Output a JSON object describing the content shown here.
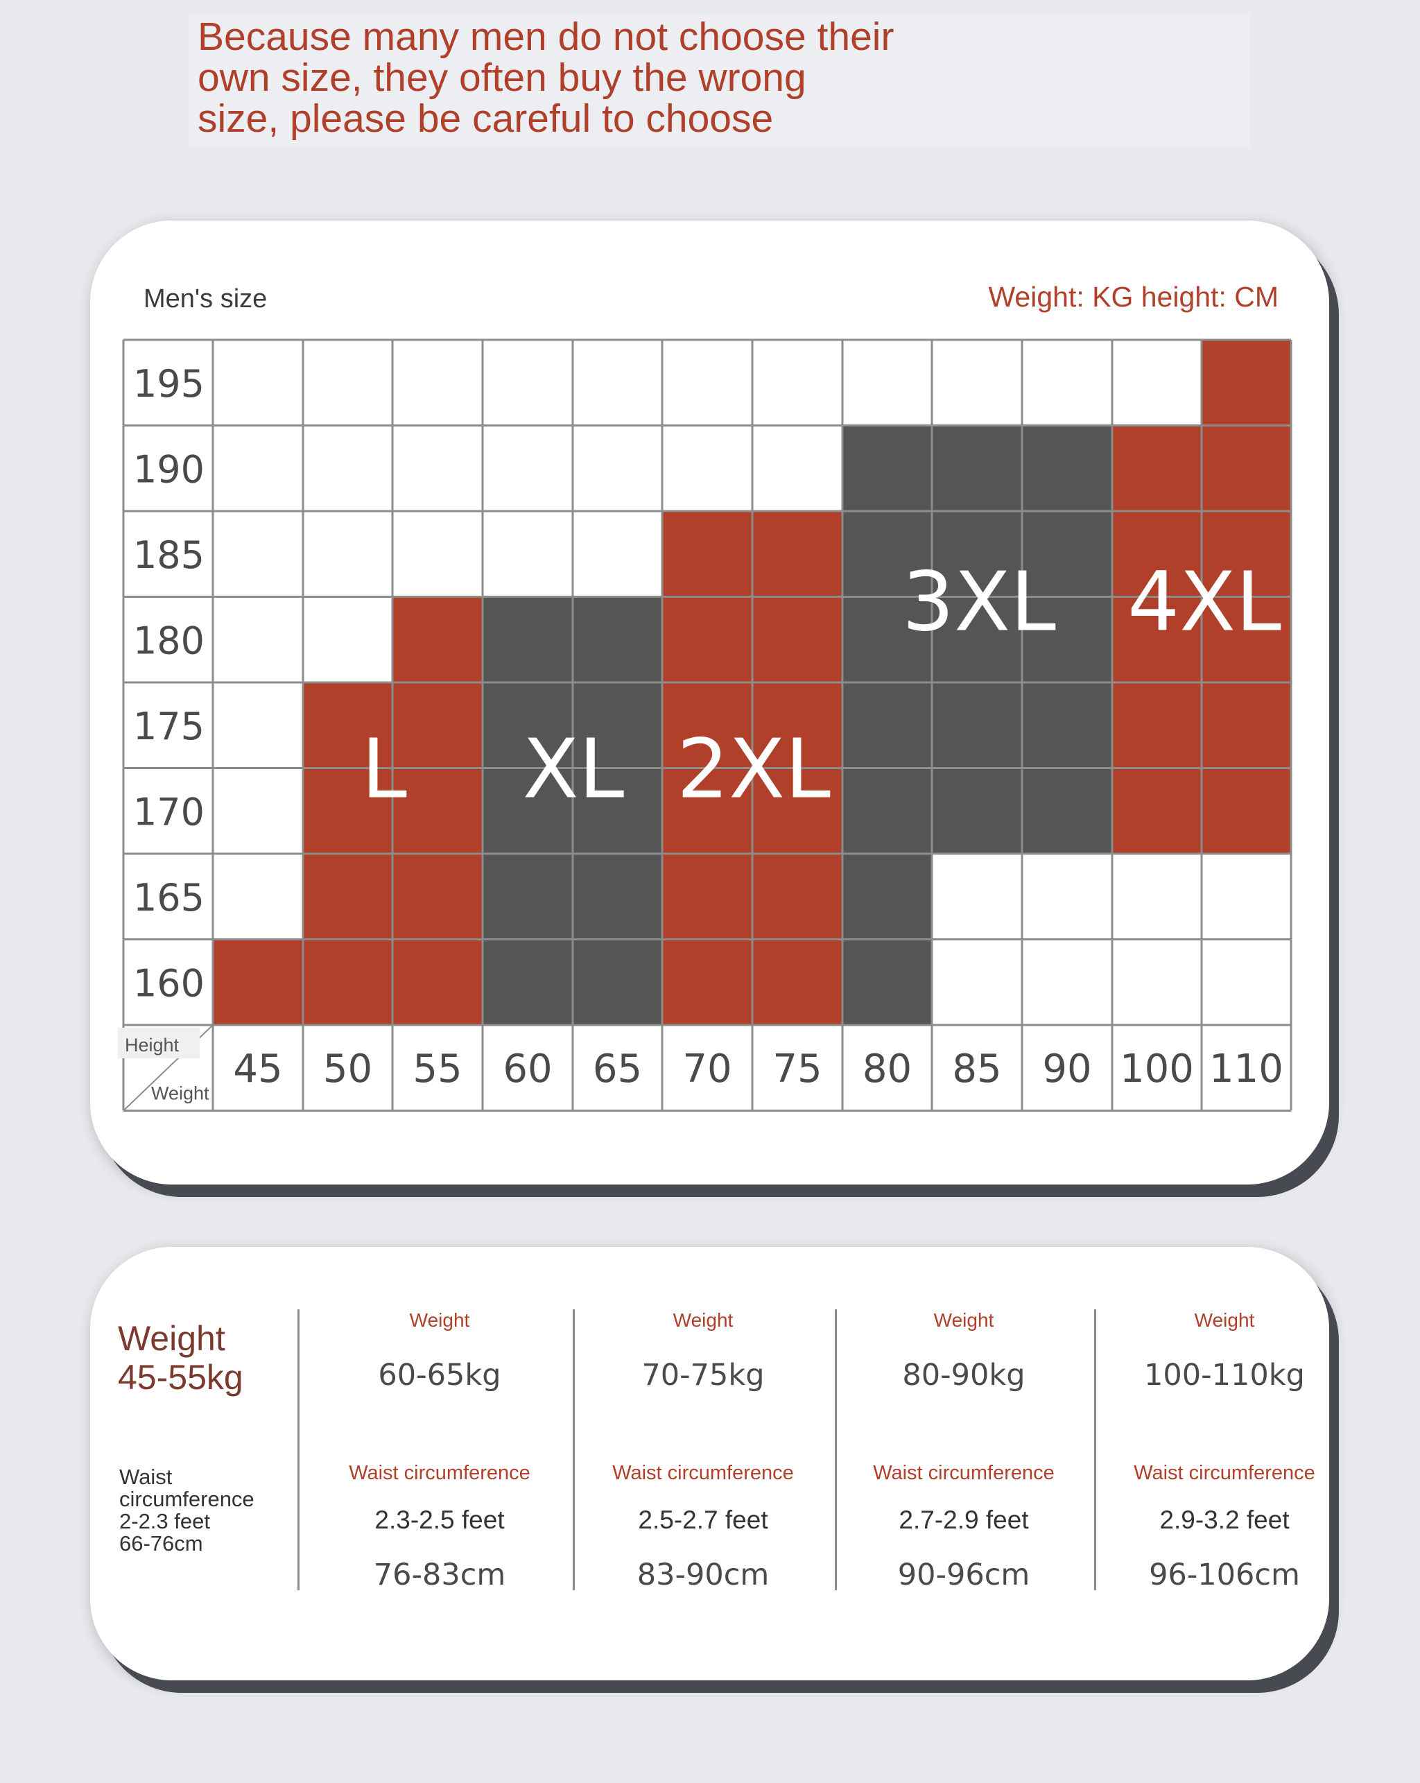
{
  "banner": {
    "line1": "Because many men do not choose their",
    "line2": "own size, they often buy the wrong",
    "line3": "size, please be careful to choose"
  },
  "chart_header": {
    "title": "Men's size",
    "units": "Weight: KG height: CM"
  },
  "chart_data": {
    "type": "heatmap",
    "title": "Men's size",
    "xlabel": "Weight",
    "ylabel": "Height",
    "x": [
      "45",
      "50",
      "55",
      "60",
      "65",
      "70",
      "75",
      "80",
      "85",
      "90",
      "100",
      "110"
    ],
    "y": [
      "195",
      "190",
      "185",
      "180",
      "175",
      "170",
      "165",
      "160"
    ],
    "colors": {
      "red": "#b0402a",
      "gray": "#555555",
      "white": "#ffffff",
      "grid": "#8c8c8c"
    },
    "sizes": [
      {
        "name": "L",
        "color": "red",
        "cells": [
          [
            0,
            0
          ],
          [
            1,
            0
          ],
          [
            2,
            0
          ],
          [
            1,
            1
          ],
          [
            2,
            1
          ],
          [
            1,
            2
          ],
          [
            2,
            2
          ],
          [
            1,
            3
          ],
          [
            2,
            3
          ],
          [
            2,
            4
          ]
        ]
      },
      {
        "name": "XL",
        "color": "gray",
        "cells": [
          [
            3,
            0
          ],
          [
            4,
            0
          ],
          [
            3,
            1
          ],
          [
            4,
            1
          ],
          [
            3,
            2
          ],
          [
            4,
            2
          ],
          [
            3,
            3
          ],
          [
            4,
            3
          ],
          [
            3,
            4
          ],
          [
            4,
            4
          ]
        ]
      },
      {
        "name": "2XL",
        "color": "red",
        "cells": [
          [
            5,
            0
          ],
          [
            6,
            0
          ],
          [
            5,
            1
          ],
          [
            6,
            1
          ],
          [
            5,
            2
          ],
          [
            6,
            2
          ],
          [
            5,
            3
          ],
          [
            6,
            3
          ],
          [
            5,
            4
          ],
          [
            6,
            4
          ],
          [
            5,
            5
          ],
          [
            6,
            5
          ]
        ]
      },
      {
        "name": "3XL",
        "color": "gray",
        "cells": [
          [
            7,
            0
          ],
          [
            7,
            1
          ],
          [
            7,
            2
          ],
          [
            8,
            2
          ],
          [
            9,
            2
          ],
          [
            7,
            3
          ],
          [
            8,
            3
          ],
          [
            9,
            3
          ],
          [
            7,
            4
          ],
          [
            8,
            4
          ],
          [
            9,
            4
          ],
          [
            7,
            5
          ],
          [
            8,
            5
          ],
          [
            9,
            5
          ],
          [
            7,
            6
          ],
          [
            8,
            6
          ],
          [
            9,
            6
          ]
        ]
      },
      {
        "name": "4XL",
        "color": "red",
        "cells": [
          [
            10,
            2
          ],
          [
            11,
            2
          ],
          [
            10,
            3
          ],
          [
            11,
            3
          ],
          [
            10,
            4
          ],
          [
            11,
            4
          ],
          [
            10,
            5
          ],
          [
            11,
            5
          ],
          [
            10,
            6
          ],
          [
            11,
            6
          ],
          [
            11,
            7
          ]
        ]
      }
    ],
    "corner": {
      "top": "Height",
      "bottom": "Weight"
    }
  },
  "details": {
    "first": {
      "weight_title": "Weight",
      "weight_range": "45-55kg",
      "waist_lines": [
        "Waist",
        "circumference",
        "2-2.3 feet",
        "66-76cm"
      ]
    },
    "columns": [
      {
        "weight_label": "Weight",
        "weight": "60-65kg",
        "waist_label": "Waist circumference",
        "feet": "2.3-2.5 feet",
        "cm": "76-83cm"
      },
      {
        "weight_label": "Weight",
        "weight": "70-75kg",
        "waist_label": "Waist circumference",
        "feet": "2.5-2.7 feet",
        "cm": "83-90cm"
      },
      {
        "weight_label": "Weight",
        "weight": "80-90kg",
        "waist_label": "Waist circumference",
        "feet": "2.7-2.9 feet",
        "cm": "90-96cm"
      },
      {
        "weight_label": "Weight",
        "weight": "100-110kg",
        "waist_label": "Waist circumference",
        "feet": "2.9-3.2 feet",
        "cm": "96-106cm"
      }
    ]
  }
}
